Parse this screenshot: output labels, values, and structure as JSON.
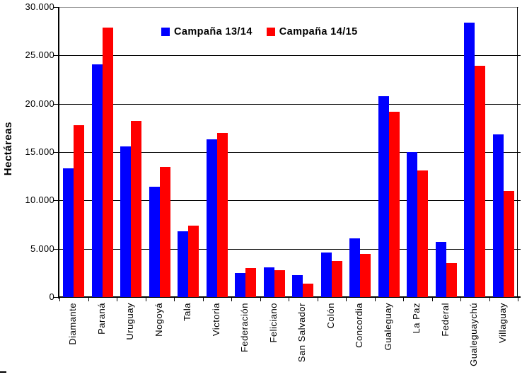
{
  "chart_data": {
    "type": "bar",
    "title": "",
    "xlabel": "",
    "ylabel": "Hectáreas",
    "ylim": [
      0,
      30000
    ],
    "ytick_step": 5000,
    "ytick_labels": [
      "0",
      "5.000",
      "10.000",
      "15.000",
      "20.000",
      "25.000",
      "30.000"
    ],
    "grid": true,
    "legend_position": "top-center-inside",
    "categories": [
      "Diamante",
      "Paraná",
      "Uruguay",
      "Nogoyá",
      "Tala",
      "Victoria",
      "Federación",
      "Feliciano",
      "San Salvador",
      "Colón",
      "Concordia",
      "Gualeguay",
      "La Paz",
      "Federal",
      "Gualeguaychú",
      "Villaguay"
    ],
    "series": [
      {
        "name": "Campaña 13/14",
        "color": "#0000ff",
        "values": [
          13300,
          24100,
          15600,
          11400,
          6800,
          16300,
          2500,
          3100,
          2300,
          4600,
          6100,
          20800,
          15000,
          5700,
          28400,
          16800
        ]
      },
      {
        "name": "Campaña 14/15",
        "color": "#ff0000",
        "values": [
          17800,
          27900,
          18200,
          13500,
          7400,
          17000,
          3000,
          2800,
          1400,
          3700,
          4500,
          19200,
          13100,
          3500,
          23900,
          11000
        ]
      }
    ]
  }
}
